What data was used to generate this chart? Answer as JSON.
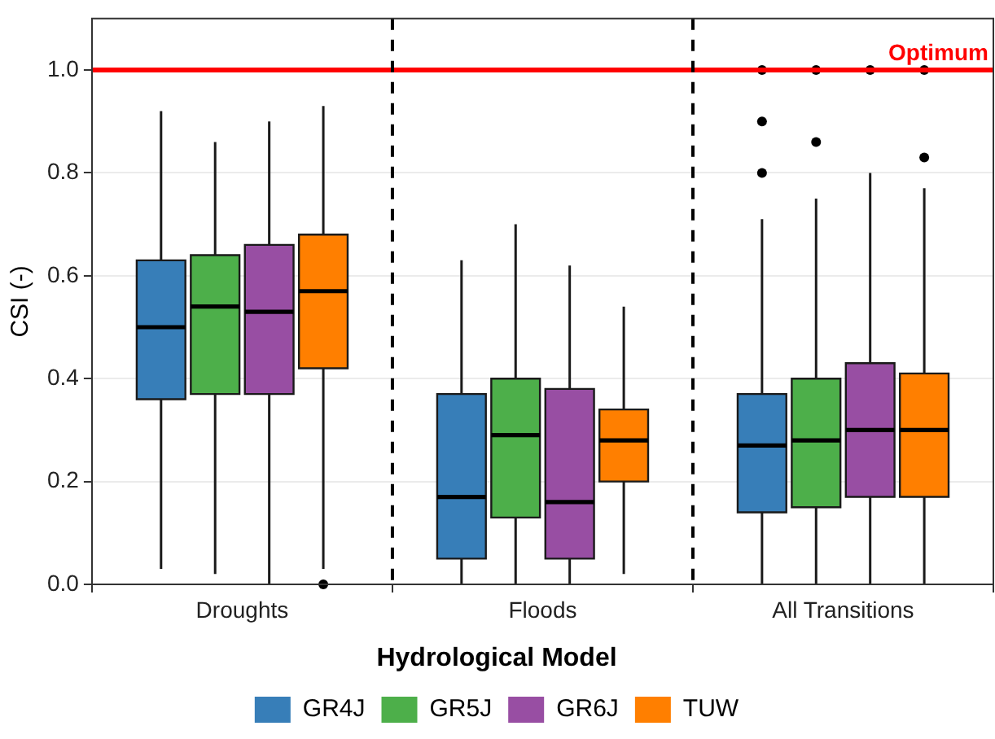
{
  "chart_data": {
    "type": "box",
    "categories": [
      "Droughts",
      "Floods",
      "All Transitions"
    ],
    "ylabel": "CSI (-)",
    "legend_title": "Hydrological Model",
    "legend": "bottom",
    "grid": "y",
    "ylim": [
      0,
      1.1
    ],
    "yticks": [
      {
        "value": 0,
        "label": "0.0"
      },
      0.2,
      0.4,
      0.6,
      0.8,
      {
        "value": 1,
        "label": "1.0"
      }
    ],
    "ref_lines": [
      {
        "axis": "y",
        "value": 1,
        "label": "Optimum",
        "color": "#ff0000",
        "line_style": "solid"
      }
    ],
    "series": [
      {
        "name": "GR4J",
        "color": "#377eb8",
        "boxes": [
          {
            "low": 0.03,
            "q1": 0.36,
            "median": 0.5,
            "q3": 0.63,
            "high": 0.92
          },
          {
            "low": 0,
            "q1": 0.05,
            "median": 0.17,
            "q3": 0.37,
            "high": 0.63
          },
          {
            "low": 0,
            "q1": 0.14,
            "median": 0.27,
            "q3": 0.37,
            "high": 0.71,
            "outliers": [
              1,
              0.9,
              0.8
            ]
          }
        ]
      },
      {
        "name": "GR5J",
        "color": "#4daf4a",
        "boxes": [
          {
            "low": 0.02,
            "q1": 0.37,
            "median": 0.54,
            "q3": 0.64,
            "high": 0.86
          },
          {
            "low": 0,
            "q1": 0.13,
            "median": 0.29,
            "q3": 0.4,
            "high": 0.7
          },
          {
            "low": 0,
            "q1": 0.15,
            "median": 0.28,
            "q3": 0.4,
            "high": 0.75,
            "outliers": [
              1,
              0.86
            ]
          }
        ]
      },
      {
        "name": "GR6J",
        "color": "#984ea3",
        "boxes": [
          {
            "low": 0,
            "q1": 0.37,
            "median": 0.53,
            "q3": 0.66,
            "high": 0.9
          },
          {
            "low": 0,
            "q1": 0.05,
            "median": 0.16,
            "q3": 0.38,
            "high": 0.62
          },
          {
            "low": 0,
            "q1": 0.17,
            "median": 0.3,
            "q3": 0.43,
            "high": 0.8,
            "outliers": [
              1
            ]
          }
        ]
      },
      {
        "name": "TUW",
        "color": "#ff7f00",
        "boxes": [
          {
            "low": 0.03,
            "q1": 0.42,
            "median": 0.57,
            "q3": 0.68,
            "high": 0.93,
            "outliers": [
              0
            ]
          },
          {
            "low": 0.02,
            "q1": 0.2,
            "median": 0.28,
            "q3": 0.34,
            "high": 0.54
          },
          {
            "low": 0,
            "q1": 0.17,
            "median": 0.3,
            "q3": 0.41,
            "high": 0.77,
            "outliers": [
              1,
              0.83
            ]
          }
        ]
      }
    ]
  }
}
